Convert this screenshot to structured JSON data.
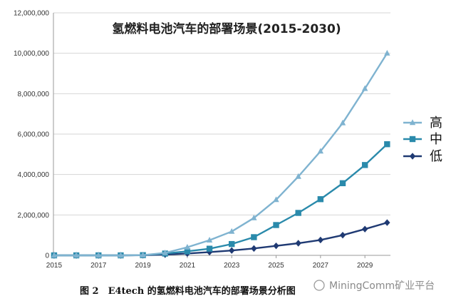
{
  "chart_data": {
    "type": "line",
    "title": "氢燃料电池汽车的部署场景(2015-2030)",
    "x": [
      2015,
      2016,
      2017,
      2018,
      2019,
      2020,
      2021,
      2022,
      2023,
      2024,
      2025,
      2026,
      2027,
      2028,
      2029,
      2030
    ],
    "x_ticks": [
      "2015",
      "2017",
      "2019",
      "2021",
      "2023",
      "2025",
      "2027",
      "2029"
    ],
    "y_ticks": [
      "0",
      "2,000,000",
      "4,000,000",
      "6,000,000",
      "8,000,000",
      "10,000,000",
      "12,000,000"
    ],
    "ylim": [
      0,
      12000000
    ],
    "grid": "horizontal",
    "legend_position": "right",
    "series": [
      {
        "name": "高",
        "marker": "triangle",
        "color": "#7fb3d0",
        "values": [
          0,
          0,
          0,
          0,
          10000,
          120000,
          400000,
          750000,
          1180000,
          1850000,
          2750000,
          3900000,
          5150000,
          6550000,
          8250000,
          10000000
        ]
      },
      {
        "name": "中",
        "marker": "square",
        "color": "#2a8aab",
        "values": [
          0,
          0,
          0,
          0,
          10000,
          90000,
          200000,
          330000,
          560000,
          900000,
          1500000,
          2100000,
          2780000,
          3570000,
          4470000,
          5500000
        ]
      },
      {
        "name": "低",
        "marker": "diamond",
        "color": "#1f3a73",
        "values": [
          0,
          0,
          0,
          0,
          5000,
          40000,
          90000,
          160000,
          240000,
          340000,
          470000,
          600000,
          760000,
          1000000,
          1300000,
          1620000
        ]
      }
    ]
  },
  "caption": "图 2　E4tech 的氢燃料电池汽车的部署场景分析图",
  "watermark": "MiningComm矿业平台"
}
